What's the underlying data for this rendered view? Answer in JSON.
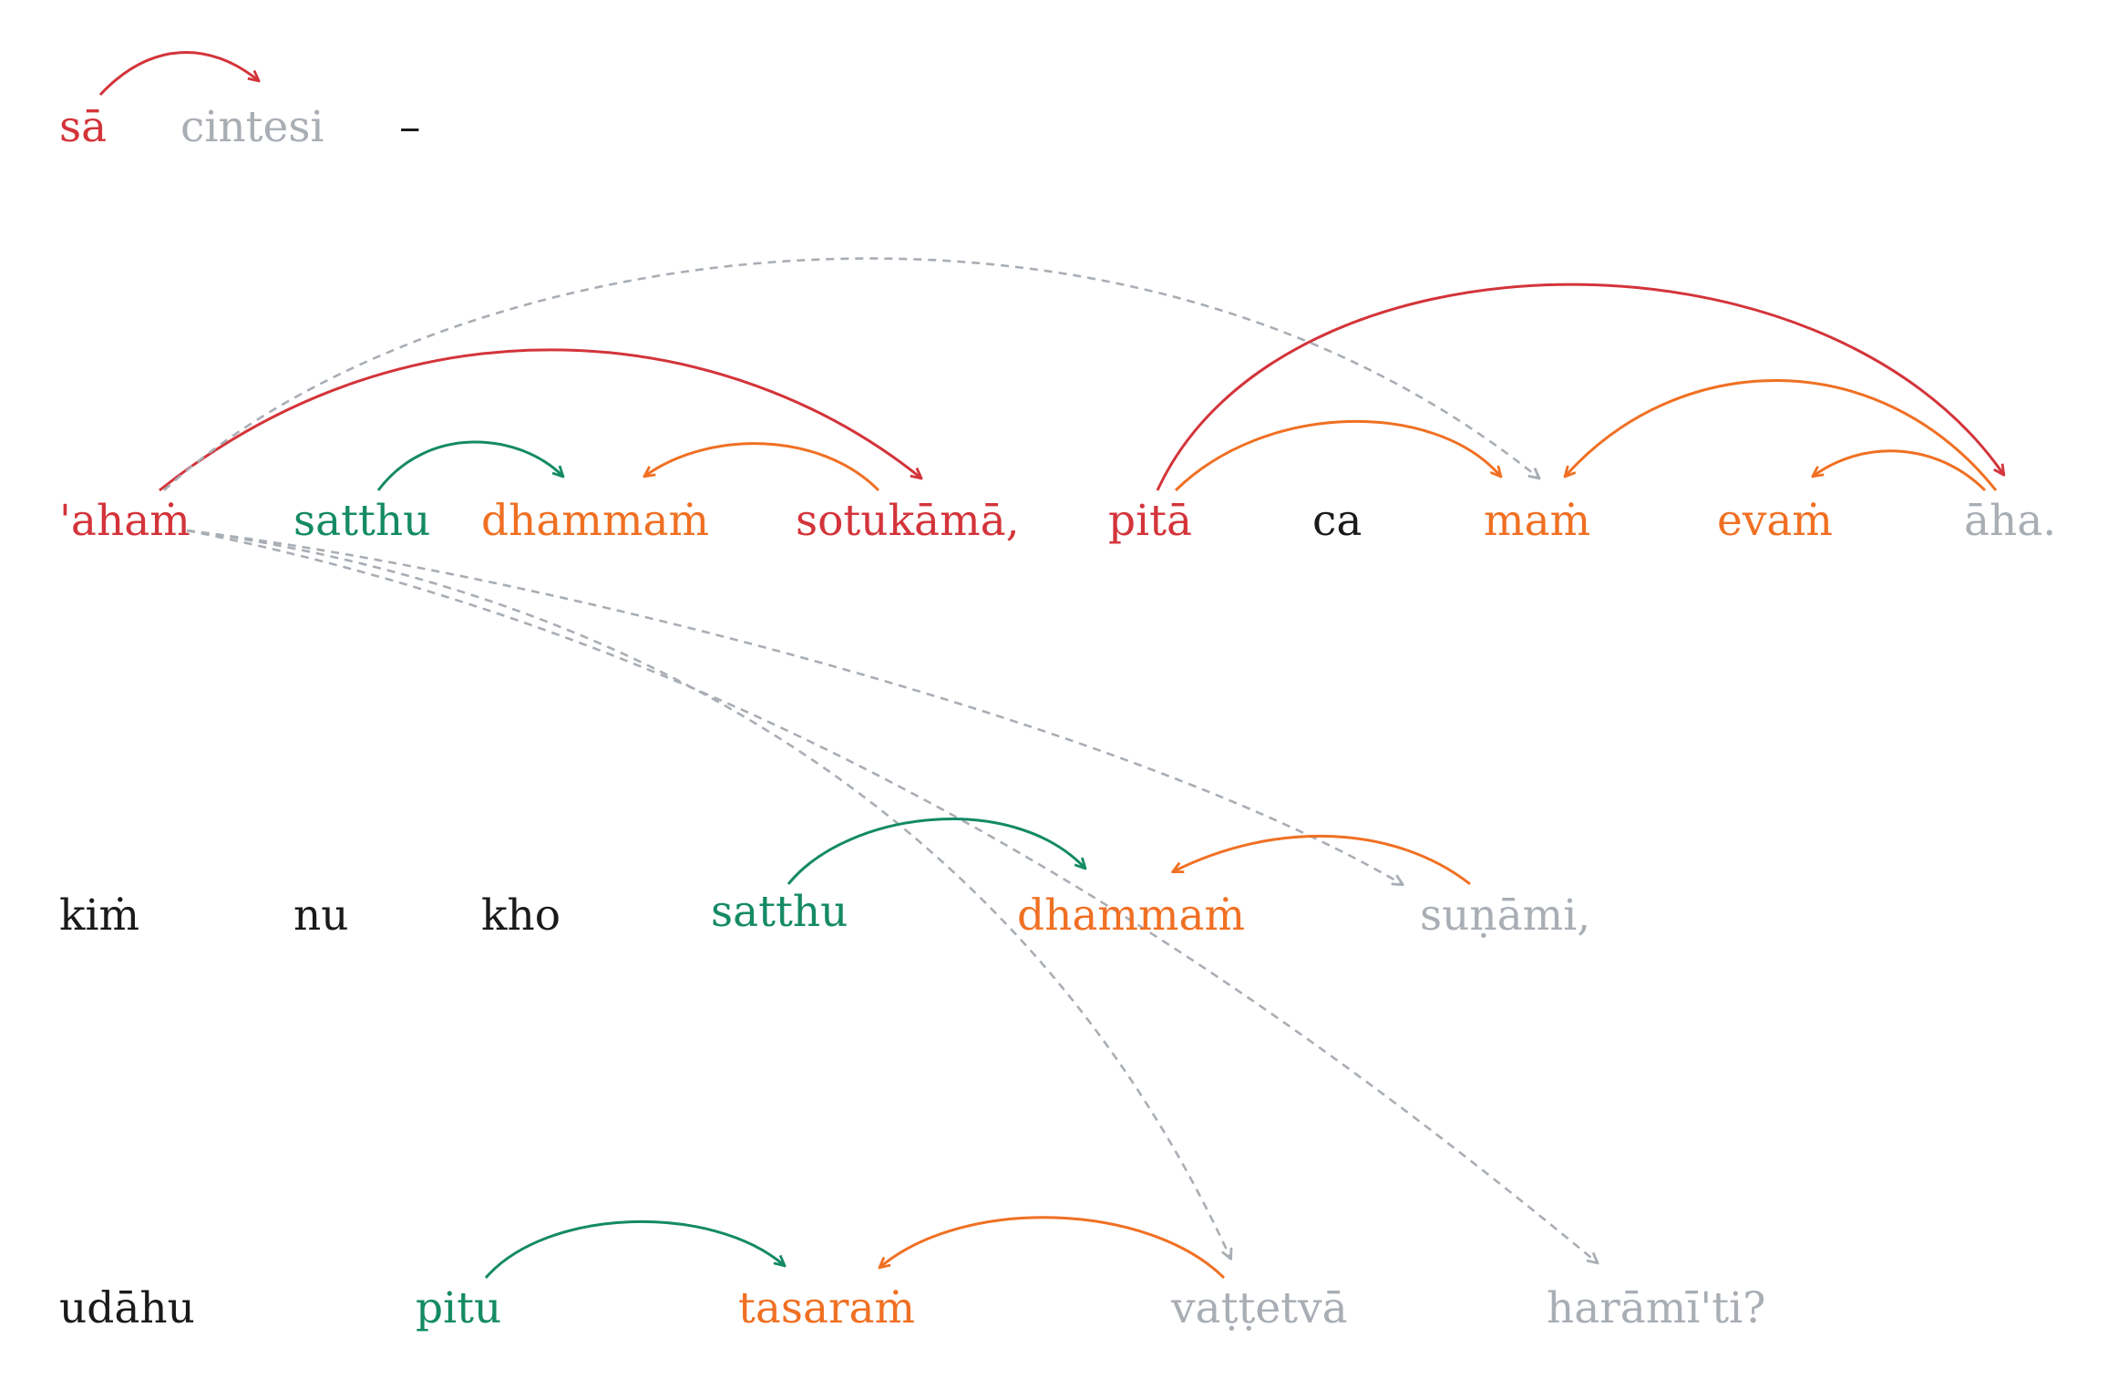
{
  "colors": {
    "red": "#d3343a",
    "orange": "#f07023",
    "green": "#148a65",
    "gray": "#a9aeb5",
    "black": "#1a1a1a"
  },
  "lines": [
    {
      "id": "line-1",
      "words": [
        {
          "id": "w-sa",
          "text": "sā",
          "color": "red"
        },
        {
          "id": "w-cintesi",
          "text": "cintesi",
          "color": "gray"
        },
        {
          "id": "w-dash",
          "text": "–",
          "color": "black"
        }
      ]
    },
    {
      "id": "line-2",
      "words": [
        {
          "id": "w-aham",
          "text": "'ahaṁ",
          "color": "red"
        },
        {
          "id": "w-satthu1",
          "text": "satthu",
          "color": "green"
        },
        {
          "id": "w-dhammam1",
          "text": "dhammaṁ",
          "color": "orange"
        },
        {
          "id": "w-sotukama",
          "text": "sotukāmā,",
          "color": "red"
        },
        {
          "id": "w-pita",
          "text": "pitā",
          "color": "red"
        },
        {
          "id": "w-ca",
          "text": "ca",
          "color": "black"
        },
        {
          "id": "w-mam",
          "text": "maṁ",
          "color": "orange"
        },
        {
          "id": "w-evam",
          "text": "evaṁ",
          "color": "orange"
        },
        {
          "id": "w-aha",
          "text": "āha.",
          "color": "gray"
        }
      ]
    },
    {
      "id": "line-3",
      "words": [
        {
          "id": "w-kim",
          "text": "kiṁ",
          "color": "black"
        },
        {
          "id": "w-nu",
          "text": "nu",
          "color": "black"
        },
        {
          "id": "w-kho",
          "text": "kho",
          "color": "black"
        },
        {
          "id": "w-satthu2",
          "text": "satthu",
          "color": "green"
        },
        {
          "id": "w-dhammam2",
          "text": "dhammaṁ",
          "color": "orange"
        },
        {
          "id": "w-sunami",
          "text": "suṇāmi,",
          "color": "gray"
        }
      ]
    },
    {
      "id": "line-4",
      "words": [
        {
          "id": "w-udahu",
          "text": "udāhu",
          "color": "black"
        },
        {
          "id": "w-pitu",
          "text": "pitu",
          "color": "green"
        },
        {
          "id": "w-tasaram",
          "text": "tasaraṁ",
          "color": "orange"
        },
        {
          "id": "w-vattetva",
          "text": "vaṭṭetvā",
          "color": "gray"
        },
        {
          "id": "w-haramiti",
          "text": "harāmī'ti?",
          "color": "gray"
        }
      ]
    }
  ],
  "arcs": [
    {
      "id": "arc-sa-cintesi",
      "from": "w-sa",
      "to": "w-cintesi",
      "color": "red",
      "dashed": false
    },
    {
      "id": "arc-aham-sotukama",
      "from": "w-aham",
      "to": "w-sotukama",
      "color": "red",
      "dashed": false
    },
    {
      "id": "arc-aham-mam",
      "from": "w-aham",
      "to": "w-mam",
      "color": "gray",
      "dashed": true
    },
    {
      "id": "arc-satthu1-dhammam1",
      "from": "w-satthu1",
      "to": "w-dhammam1",
      "color": "green",
      "dashed": false
    },
    {
      "id": "arc-sotukama-dhammam1",
      "from": "w-sotukama",
      "to": "w-dhammam1",
      "color": "orange",
      "dashed": false
    },
    {
      "id": "arc-pita-aha",
      "from": "w-pita",
      "to": "w-aha",
      "color": "red",
      "dashed": false
    },
    {
      "id": "arc-pita-mam",
      "from": "w-pita",
      "to": "w-mam",
      "color": "orange",
      "dashed": false
    },
    {
      "id": "arc-aha-mam",
      "from": "w-aha",
      "to": "w-mam",
      "color": "orange",
      "dashed": false
    },
    {
      "id": "arc-aha-evam",
      "from": "w-aha",
      "to": "w-evam",
      "color": "orange",
      "dashed": false
    },
    {
      "id": "arc-aham-sunami",
      "from": "w-aham",
      "to": "w-sunami",
      "color": "gray",
      "dashed": true
    },
    {
      "id": "arc-aham-haramiti",
      "from": "w-aham",
      "to": "w-haramiti",
      "color": "gray",
      "dashed": true
    },
    {
      "id": "arc-aham-vattetva",
      "from": "w-aham",
      "to": "w-vattetva",
      "color": "gray",
      "dashed": true
    },
    {
      "id": "arc-satthu2-dhammam2",
      "from": "w-satthu2",
      "to": "w-dhammam2",
      "color": "green",
      "dashed": false
    },
    {
      "id": "arc-sunami-dhammam2",
      "from": "w-sunami",
      "to": "w-dhammam2",
      "color": "orange",
      "dashed": false
    },
    {
      "id": "arc-pitu-tasaram",
      "from": "w-pitu",
      "to": "w-tasaram",
      "color": "green",
      "dashed": false
    },
    {
      "id": "arc-vattetva-tasaram",
      "from": "w-vattetva",
      "to": "w-tasaram",
      "color": "orange",
      "dashed": false
    }
  ]
}
